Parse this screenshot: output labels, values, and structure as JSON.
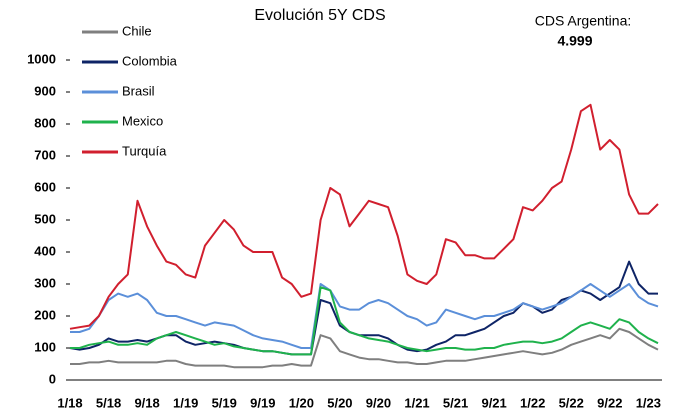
{
  "chart_data": {
    "type": "line",
    "title": "Evolución 5Y CDS",
    "annotation": {
      "label": "CDS Argentina:",
      "value": "4.999"
    },
    "categories": [
      "1/18",
      null,
      null,
      null,
      "5/18",
      null,
      null,
      null,
      "9/18",
      null,
      null,
      null,
      "1/19",
      null,
      null,
      null,
      "5/19",
      null,
      null,
      null,
      "9/19",
      null,
      null,
      null,
      "1/20",
      null,
      null,
      null,
      "5/20",
      null,
      null,
      null,
      "9/20",
      null,
      null,
      null,
      "1/21",
      null,
      null,
      null,
      "5/21",
      null,
      null,
      null,
      "9/21",
      null,
      null,
      null,
      "1/22",
      null,
      null,
      null,
      "5/22",
      null,
      null,
      null,
      "9/22",
      null,
      null,
      null,
      "1/23",
      null
    ],
    "ylim": [
      0,
      1000
    ],
    "yticks": [
      0,
      100,
      200,
      300,
      400,
      500,
      600,
      700,
      800,
      900,
      1000
    ],
    "grid": false,
    "legend": "upper left",
    "series": [
      {
        "name": "Chile",
        "color": "#7f7f7f",
        "values": [
          50,
          50,
          55,
          55,
          60,
          55,
          55,
          55,
          55,
          55,
          60,
          60,
          50,
          45,
          45,
          45,
          45,
          40,
          40,
          40,
          40,
          45,
          45,
          50,
          45,
          45,
          140,
          130,
          90,
          80,
          70,
          65,
          65,
          60,
          55,
          55,
          50,
          50,
          55,
          60,
          60,
          60,
          65,
          70,
          75,
          80,
          85,
          90,
          85,
          80,
          85,
          95,
          110,
          120,
          130,
          140,
          130,
          160,
          150,
          130,
          110,
          95
        ]
      },
      {
        "name": "Colombia",
        "color": "#0e2466",
        "values": [
          100,
          95,
          100,
          110,
          130,
          120,
          120,
          125,
          120,
          130,
          140,
          140,
          120,
          110,
          115,
          120,
          115,
          110,
          100,
          95,
          90,
          90,
          85,
          80,
          80,
          80,
          250,
          240,
          170,
          150,
          140,
          140,
          140,
          130,
          110,
          95,
          90,
          95,
          110,
          120,
          140,
          140,
          150,
          160,
          180,
          200,
          210,
          240,
          230,
          210,
          220,
          250,
          260,
          280,
          270,
          250,
          270,
          290,
          370,
          300,
          270,
          270
        ]
      },
      {
        "name": "Brasil",
        "color": "#5b8fd9",
        "values": [
          150,
          150,
          160,
          200,
          250,
          270,
          260,
          270,
          250,
          210,
          200,
          200,
          190,
          180,
          170,
          180,
          175,
          170,
          155,
          140,
          130,
          125,
          120,
          110,
          100,
          100,
          300,
          280,
          230,
          220,
          220,
          240,
          250,
          240,
          220,
          200,
          190,
          170,
          180,
          220,
          210,
          200,
          190,
          200,
          200,
          210,
          220,
          240,
          230,
          220,
          230,
          240,
          260,
          280,
          300,
          280,
          260,
          280,
          300,
          260,
          240,
          230
        ]
      },
      {
        "name": "Mexico",
        "color": "#1fb24c",
        "values": [
          100,
          100,
          110,
          115,
          120,
          110,
          110,
          115,
          110,
          130,
          140,
          150,
          140,
          130,
          120,
          110,
          115,
          105,
          100,
          95,
          90,
          90,
          85,
          80,
          80,
          80,
          290,
          280,
          180,
          150,
          140,
          130,
          125,
          120,
          110,
          100,
          95,
          90,
          95,
          100,
          100,
          95,
          95,
          100,
          100,
          110,
          115,
          120,
          120,
          115,
          120,
          130,
          150,
          170,
          180,
          170,
          160,
          190,
          180,
          150,
          130,
          115
        ]
      },
      {
        "name": "Turquía",
        "color": "#d11f2e",
        "values": [
          160,
          165,
          170,
          200,
          260,
          300,
          330,
          560,
          480,
          420,
          370,
          360,
          330,
          320,
          420,
          460,
          500,
          470,
          420,
          400,
          400,
          400,
          320,
          300,
          260,
          270,
          500,
          600,
          580,
          480,
          520,
          560,
          550,
          540,
          450,
          330,
          310,
          300,
          330,
          440,
          430,
          390,
          390,
          380,
          380,
          410,
          440,
          540,
          530,
          560,
          600,
          620,
          720,
          840,
          860,
          720,
          750,
          720,
          580,
          520,
          520,
          550
        ]
      }
    ]
  }
}
